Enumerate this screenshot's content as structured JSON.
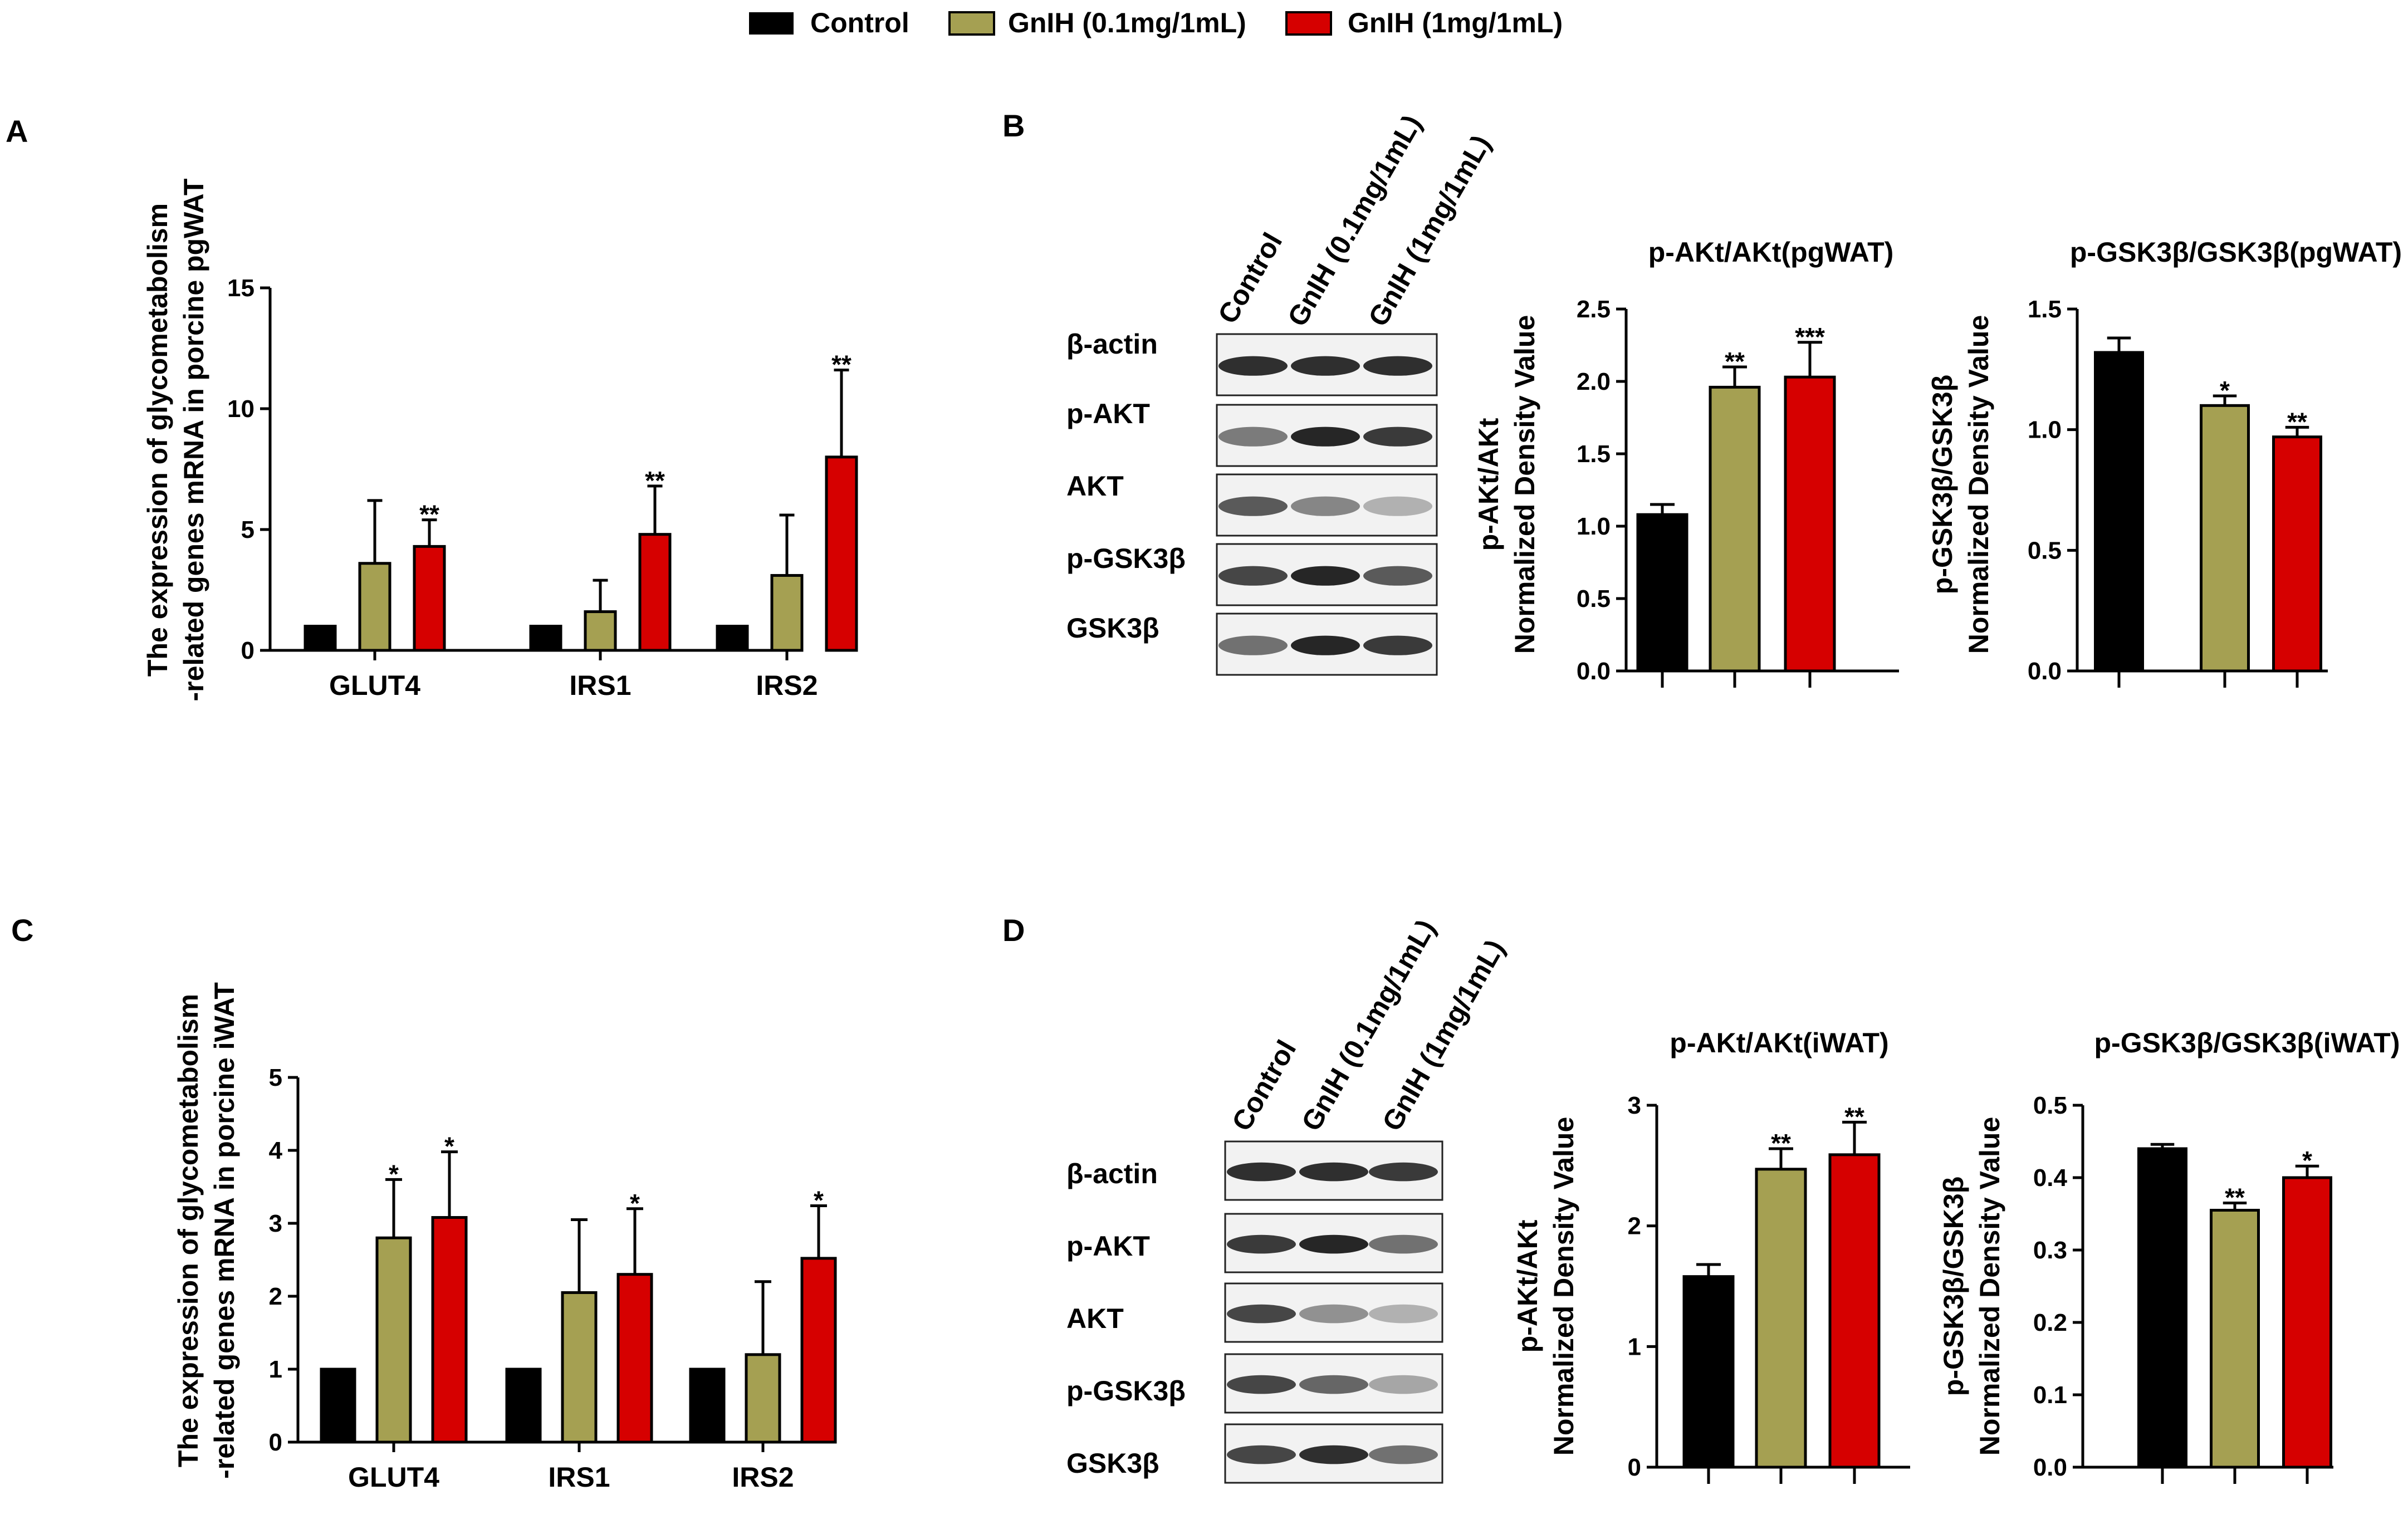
{
  "colors": {
    "Control": "#000000",
    "GnIH_low": "#a5a052",
    "GnIH_high": "#d60000"
  },
  "legend": {
    "items": [
      {
        "label": "Control",
        "color": "#000000"
      },
      {
        "label": "GnIH (0.1mg/1mL)",
        "color": "#a5a052"
      },
      {
        "label": "GnIH (1mg/1mL)",
        "color": "#d60000"
      }
    ]
  },
  "panels": {
    "A": "A",
    "B": "B",
    "C": "C",
    "D": "D"
  },
  "blots": {
    "B": {
      "lanes": [
        "Control",
        "GnIH (0.1mg/1mL)",
        "GnIH (1mg/1mL)"
      ],
      "rows": [
        "β-actin",
        "p-AKT",
        "AKT",
        "p-GSK3β",
        "GSK3β"
      ]
    },
    "D": {
      "lanes": [
        "Control",
        "GnIH (0.1mg/1mL)",
        "GnIH (1mg/1mL)"
      ],
      "rows": [
        "β-actin",
        "p-AKT",
        "AKT",
        "p-GSK3β",
        "GSK3β"
      ]
    }
  },
  "chart_data": [
    {
      "id": "A",
      "type": "bar",
      "ylabel_lines": [
        "The expression of glycometabolism",
        "-related genes mRNA in porcine pgWAT"
      ],
      "categories": [
        "GLUT4",
        "IRS1",
        "IRS2"
      ],
      "ylim": [
        0,
        15
      ],
      "yticks": [
        0,
        5,
        10,
        15
      ],
      "series": [
        {
          "name": "Control",
          "values": [
            1,
            1,
            1
          ],
          "err": [
            0,
            0,
            0
          ],
          "sig": [
            "",
            "",
            ""
          ]
        },
        {
          "name": "GnIH (0.1mg/1mL)",
          "values": [
            3.6,
            1.6,
            3.1
          ],
          "err": [
            2.6,
            1.3,
            2.5
          ],
          "sig": [
            "",
            "",
            ""
          ]
        },
        {
          "name": "GnIH (1mg/1mL)",
          "values": [
            4.3,
            4.8,
            8.0
          ],
          "err": [
            1.1,
            2.0,
            3.6
          ],
          "sig": [
            "**",
            "**",
            "**"
          ]
        }
      ]
    },
    {
      "id": "B1",
      "type": "bar",
      "title": "p-AKt/AKt(pgWAT)",
      "ylabel_lines": [
        "p-AKt/AKt",
        "Normalized Density Value"
      ],
      "ylim": [
        0,
        2.5
      ],
      "yticks": [
        0.0,
        0.5,
        1.0,
        1.5,
        2.0,
        2.5
      ],
      "tick_decimals": 1,
      "categories": [
        "Control",
        "GnIH (0.1mg/1mL)",
        "GnIH (1mg/1mL)"
      ],
      "values": [
        1.08,
        1.96,
        2.03
      ],
      "err": [
        0.07,
        0.14,
        0.24
      ],
      "sig": [
        "",
        "**",
        "***"
      ]
    },
    {
      "id": "B2",
      "type": "bar",
      "title": "p-GSK3β/GSK3β(pgWAT)",
      "ylabel_lines": [
        "p-GSK3β/GSK3β",
        "Normalized Density Value"
      ],
      "ylim": [
        0,
        1.5
      ],
      "yticks": [
        0.0,
        0.5,
        1.0,
        1.5
      ],
      "tick_decimals": 1,
      "categories": [
        "Control",
        "GnIH (0.1mg/1mL)",
        "GnIH (1mg/1mL)"
      ],
      "values": [
        1.32,
        1.1,
        0.97
      ],
      "err": [
        0.06,
        0.04,
        0.04
      ],
      "sig": [
        "",
        "*",
        "**"
      ]
    },
    {
      "id": "C",
      "type": "bar",
      "ylabel_lines": [
        "The expression of glycometabolism",
        "-related genes mRNA in porcine iWAT"
      ],
      "categories": [
        "GLUT4",
        "IRS1",
        "IRS2"
      ],
      "ylim": [
        0,
        5
      ],
      "yticks": [
        0,
        1,
        2,
        3,
        4,
        5
      ],
      "series": [
        {
          "name": "Control",
          "values": [
            1,
            1,
            1
          ],
          "err": [
            0,
            0,
            0
          ],
          "sig": [
            "",
            "",
            ""
          ]
        },
        {
          "name": "GnIH (0.1mg/1mL)",
          "values": [
            2.8,
            2.05,
            1.2
          ],
          "err": [
            0.8,
            1.0,
            1.0
          ],
          "sig": [
            "*",
            "",
            ""
          ]
        },
        {
          "name": "GnIH (1mg/1mL)",
          "values": [
            3.08,
            2.3,
            2.52
          ],
          "err": [
            0.9,
            0.9,
            0.72
          ],
          "sig": [
            "*",
            "*",
            "*"
          ]
        }
      ]
    },
    {
      "id": "D1",
      "type": "bar",
      "title": "p-AKt/AKt(iWAT)",
      "ylabel_lines": [
        "p-AKt/AKt",
        "Normalized Density Value"
      ],
      "ylim": [
        0,
        3
      ],
      "yticks": [
        0,
        1,
        2,
        3
      ],
      "tick_decimals": 0,
      "categories": [
        "Control",
        "GnIH (0.1mg/1mL)",
        "GnIH (1mg/1mL)"
      ],
      "values": [
        1.58,
        2.47,
        2.59
      ],
      "err": [
        0.1,
        0.17,
        0.27
      ],
      "sig": [
        "",
        "**",
        "**"
      ]
    },
    {
      "id": "D2",
      "type": "bar",
      "title": "p-GSK3β/GSK3β(iWAT)",
      "ylabel_lines": [
        "p-GSK3β/GSK3β",
        "Normalized Density Value"
      ],
      "ylim": [
        0,
        0.5
      ],
      "yticks": [
        0.0,
        0.1,
        0.2,
        0.3,
        0.4,
        0.5
      ],
      "tick_decimals": 1,
      "categories": [
        "Control",
        "GnIH (0.1mg/1mL)",
        "GnIH (1mg/1mL)"
      ],
      "values": [
        0.44,
        0.355,
        0.4
      ],
      "err": [
        0.006,
        0.01,
        0.016
      ],
      "sig": [
        "",
        "**",
        "*"
      ]
    }
  ]
}
